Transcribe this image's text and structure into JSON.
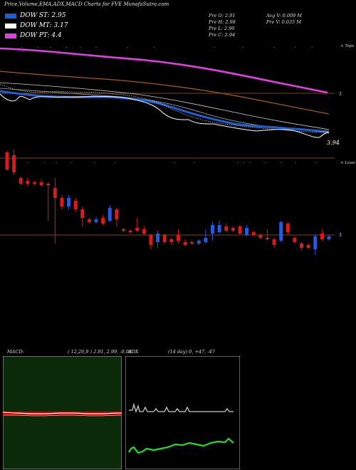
{
  "title": "Price,Volume,EMA,ADX,MACD Charts for FVE MunafaSutra.com",
  "legend": [
    {
      "label": "DOW ST: 2.95",
      "color": "#1f5fd6"
    },
    {
      "label": "DOW MT: 3.17",
      "color": "#ffffff"
    },
    {
      "label": "DOW PT: 4.4",
      "color": "#e040e0"
    }
  ],
  "stats": {
    "open": "Pre O: 2.91",
    "high": "Pre H: 2.98",
    "low": "Pre L: 2.90",
    "close": "Pre C: 2.94",
    "avg_vol": "Avg V: 0.009 M",
    "pre_vol": "Pre V: 0.035 M"
  },
  "price_panel": {
    "right_label_top": "< Tops",
    "price_label_main": "3",
    "price_label_low": "3.94",
    "right_label_low": "< Lows",
    "vol_label": "3"
  },
  "macd_panel": {
    "label": "MACD:",
    "values": "( 12,26,9 ) 2.91, 2.99, -0.08"
  },
  "adx_panel": {
    "label": "ADX",
    "values": "(14 day) 0, +47, -47"
  },
  "chart_data": {
    "type": "candlestick",
    "series": [
      {
        "name": "DOW ST",
        "value": 2.95
      },
      {
        "name": "DOW MT",
        "value": 3.17
      },
      {
        "name": "DOW PT",
        "value": 4.4
      }
    ],
    "candles": [
      {
        "dir": "down",
        "o": 4.2,
        "c": 3.6,
        "h": 4.25,
        "l": 3.55
      },
      {
        "dir": "down",
        "o": 4.1,
        "c": 3.5,
        "h": 4.3,
        "l": 3.4
      },
      {
        "dir": "down",
        "o": 3.3,
        "c": 3.1,
        "h": 3.35,
        "l": 3.05
      },
      {
        "dir": "down",
        "o": 3.2,
        "c": 3.1,
        "h": 3.3,
        "l": 3.0
      },
      {
        "dir": "down",
        "o": 3.15,
        "c": 3.1,
        "h": 3.2,
        "l": 3.05
      },
      {
        "dir": "down",
        "o": 3.15,
        "c": 3.05,
        "h": 3.25,
        "l": 3.0
      },
      {
        "dir": "down",
        "o": 3.1,
        "c": 3.05,
        "h": 3.15,
        "l": 1.8
      },
      {
        "dir": "down",
        "o": 2.95,
        "c": 2.6,
        "h": 3.3,
        "l": 1.0
      },
      {
        "dir": "down",
        "o": 2.6,
        "c": 2.3,
        "h": 2.7,
        "l": 2.2
      },
      {
        "dir": "up",
        "o": 2.3,
        "c": 2.6,
        "h": 2.7,
        "l": 2.2
      },
      {
        "dir": "down",
        "o": 2.5,
        "c": 2.2,
        "h": 2.6,
        "l": 2.1
      },
      {
        "dir": "down",
        "o": 2.2,
        "c": 1.9,
        "h": 2.3,
        "l": 1.6
      },
      {
        "dir": "down",
        "o": 1.85,
        "c": 1.75,
        "h": 1.9,
        "l": 1.7
      },
      {
        "dir": "up",
        "o": 1.75,
        "c": 1.85,
        "h": 1.95,
        "l": 1.7
      },
      {
        "dir": "down",
        "o": 1.9,
        "c": 1.7,
        "h": 2.0,
        "l": 1.65
      },
      {
        "dir": "up",
        "o": 1.8,
        "c": 2.25,
        "h": 2.35,
        "l": 1.75
      },
      {
        "dir": "down",
        "o": 2.2,
        "c": 1.85,
        "h": 2.25,
        "l": 1.6
      },
      {
        "dir": "down",
        "o": 1.5,
        "c": 1.45,
        "h": 1.55,
        "l": 1.4
      },
      {
        "dir": "down",
        "o": 1.45,
        "c": 1.4,
        "h": 1.5,
        "l": 1.35
      },
      {
        "dir": "down",
        "o": 1.55,
        "c": 1.45,
        "h": 1.9,
        "l": 1.4
      },
      {
        "dir": "down",
        "o": 1.5,
        "c": 1.35,
        "h": 1.6,
        "l": 1.3
      },
      {
        "dir": "down",
        "o": 1.3,
        "c": 0.95,
        "h": 1.35,
        "l": 0.8
      },
      {
        "dir": "up",
        "o": 1.05,
        "c": 1.35,
        "h": 1.45,
        "l": 0.85
      },
      {
        "dir": "down",
        "o": 1.3,
        "c": 1.05,
        "h": 1.35,
        "l": 1.0
      },
      {
        "dir": "down",
        "o": 1.15,
        "c": 1.05,
        "h": 1.2,
        "l": 0.95
      },
      {
        "dir": "down",
        "o": 1.3,
        "c": 1.1,
        "h": 1.5,
        "l": 1.0
      },
      {
        "dir": "down",
        "o": 1.05,
        "c": 0.95,
        "h": 1.15,
        "l": 0.9
      },
      {
        "dir": "down",
        "o": 1.05,
        "c": 1.0,
        "h": 1.1,
        "l": 0.95
      },
      {
        "dir": "up",
        "o": 1.0,
        "c": 1.1,
        "h": 1.15,
        "l": 0.95
      },
      {
        "dir": "up",
        "o": 1.05,
        "c": 1.2,
        "h": 1.5,
        "l": 1.0
      },
      {
        "dir": "up",
        "o": 1.35,
        "c": 1.65,
        "h": 1.75,
        "l": 1.1
      },
      {
        "dir": "up",
        "o": 1.4,
        "c": 1.65,
        "h": 1.8,
        "l": 1.35
      },
      {
        "dir": "down",
        "o": 1.6,
        "c": 1.45,
        "h": 1.7,
        "l": 1.4
      },
      {
        "dir": "down",
        "o": 1.55,
        "c": 1.45,
        "h": 1.6,
        "l": 1.4
      },
      {
        "dir": "down",
        "o": 1.6,
        "c": 1.35,
        "h": 1.65,
        "l": 1.3
      },
      {
        "dir": "up",
        "o": 1.3,
        "c": 1.55,
        "h": 1.65,
        "l": 1.25
      },
      {
        "dir": "down",
        "o": 1.4,
        "c": 1.3,
        "h": 1.45,
        "l": 1.25
      },
      {
        "dir": "down",
        "o": 1.3,
        "c": 1.2,
        "h": 1.35,
        "l": 1.15
      },
      {
        "dir": "down",
        "o": 1.2,
        "c": 1.15,
        "h": 1.5,
        "l": 1.1
      },
      {
        "dir": "down",
        "o": 1.15,
        "c": 0.95,
        "h": 1.2,
        "l": 0.85
      },
      {
        "dir": "up",
        "o": 1.1,
        "c": 1.75,
        "h": 1.8,
        "l": 1.05
      },
      {
        "dir": "down",
        "o": 1.7,
        "c": 1.4,
        "h": 1.75,
        "l": 1.3
      },
      {
        "dir": "down",
        "o": 1.2,
        "c": 1.05,
        "h": 1.25,
        "l": 1.0
      },
      {
        "dir": "down",
        "o": 1.0,
        "c": 0.85,
        "h": 1.05,
        "l": 0.75
      },
      {
        "dir": "down",
        "o": 0.95,
        "c": 0.85,
        "h": 1.0,
        "l": 0.8
      },
      {
        "dir": "up",
        "o": 0.8,
        "c": 1.25,
        "h": 1.35,
        "l": 0.6
      },
      {
        "dir": "down",
        "o": 1.35,
        "c": 1.15,
        "h": 1.5,
        "l": 1.1
      },
      {
        "dir": "up",
        "o": 1.15,
        "c": 1.25,
        "h": 1.3,
        "l": 1.1
      }
    ]
  }
}
